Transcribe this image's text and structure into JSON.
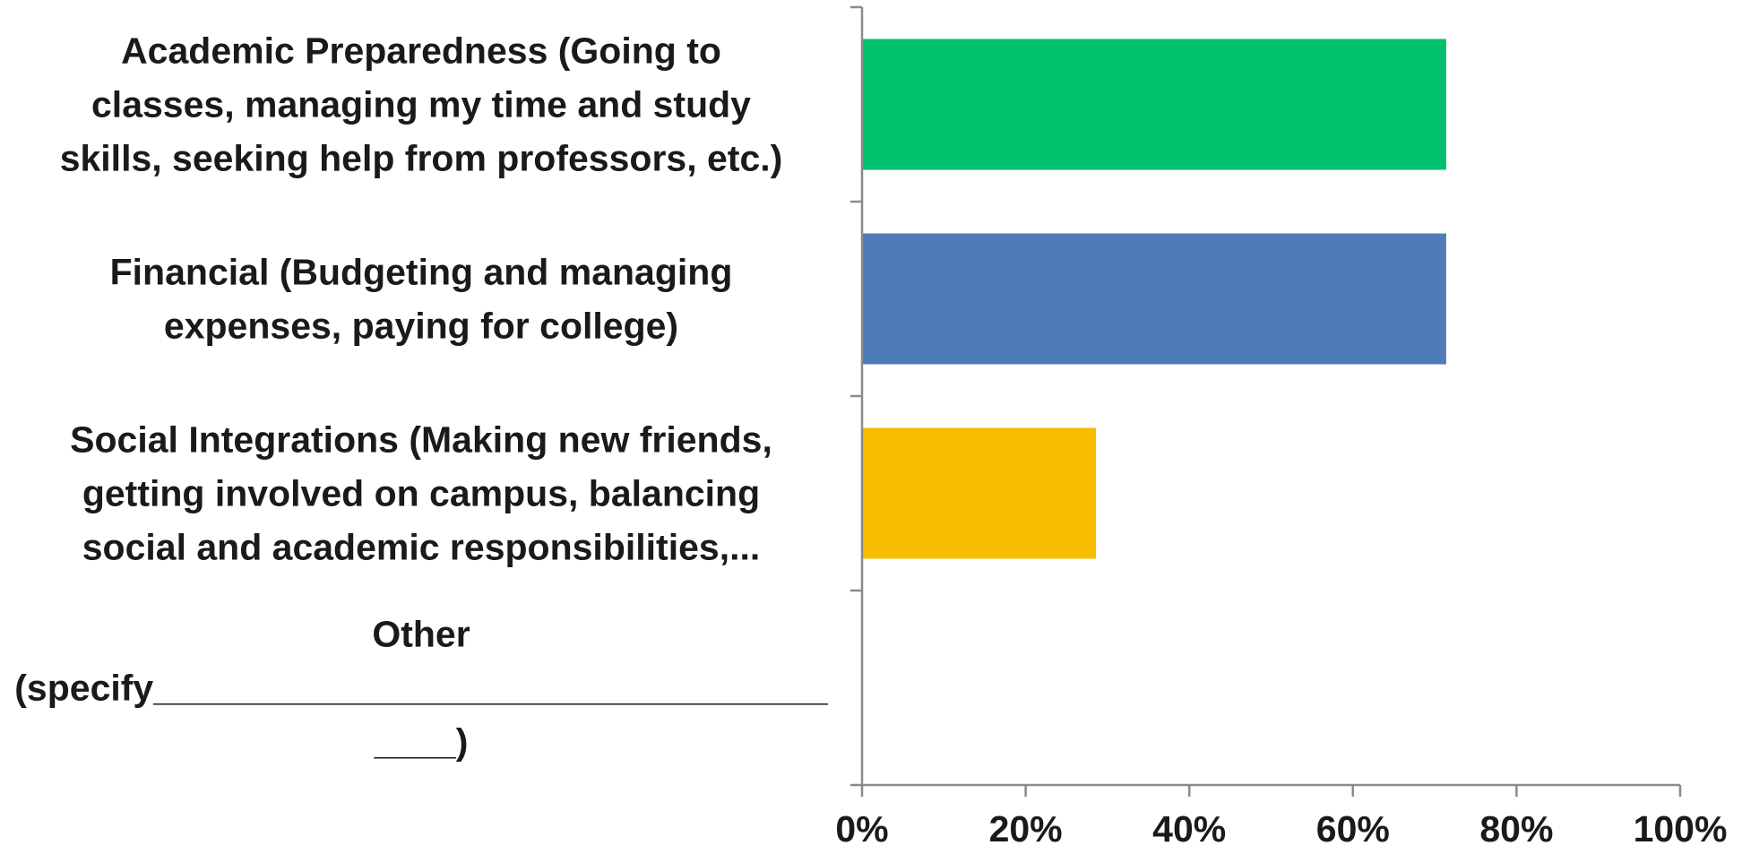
{
  "chart_data": {
    "type": "bar",
    "orientation": "horizontal",
    "categories": [
      "Academic Preparedness (Going to classes, managing my time and study skills, seeking help from professors, etc.)",
      "Financial (Budgeting and managing expenses, paying for college)",
      "Social Integrations (Making new friends, getting involved on campus, balancing social and academic responsibilities,...",
      "Other (specify_____________________________________)"
    ],
    "category_label_lines": [
      [
        "Academic Preparedness (Going to",
        "classes, managing my time and study",
        "skills, seeking help from professors, etc.)"
      ],
      [
        "Financial (Budgeting and managing",
        "expenses, paying for college)"
      ],
      [
        "Social Integrations (Making new friends,",
        "getting involved on campus, balancing",
        "social and academic responsibilities,..."
      ],
      [
        "Other",
        "(specify_________________________________",
        "____)"
      ]
    ],
    "values": [
      71.4,
      71.4,
      28.6,
      0
    ],
    "colors": [
      "#00c06e",
      "#4f7cb6",
      "#f7bd00",
      "#a0a0a0"
    ],
    "xlim": [
      0,
      100
    ],
    "xticks": [
      0,
      20,
      40,
      60,
      80,
      100
    ],
    "xtick_labels": [
      "0%",
      "20%",
      "40%",
      "60%",
      "80%",
      "100%"
    ],
    "title": "",
    "xlabel": "",
    "ylabel": "",
    "grid": false,
    "legend": false
  }
}
